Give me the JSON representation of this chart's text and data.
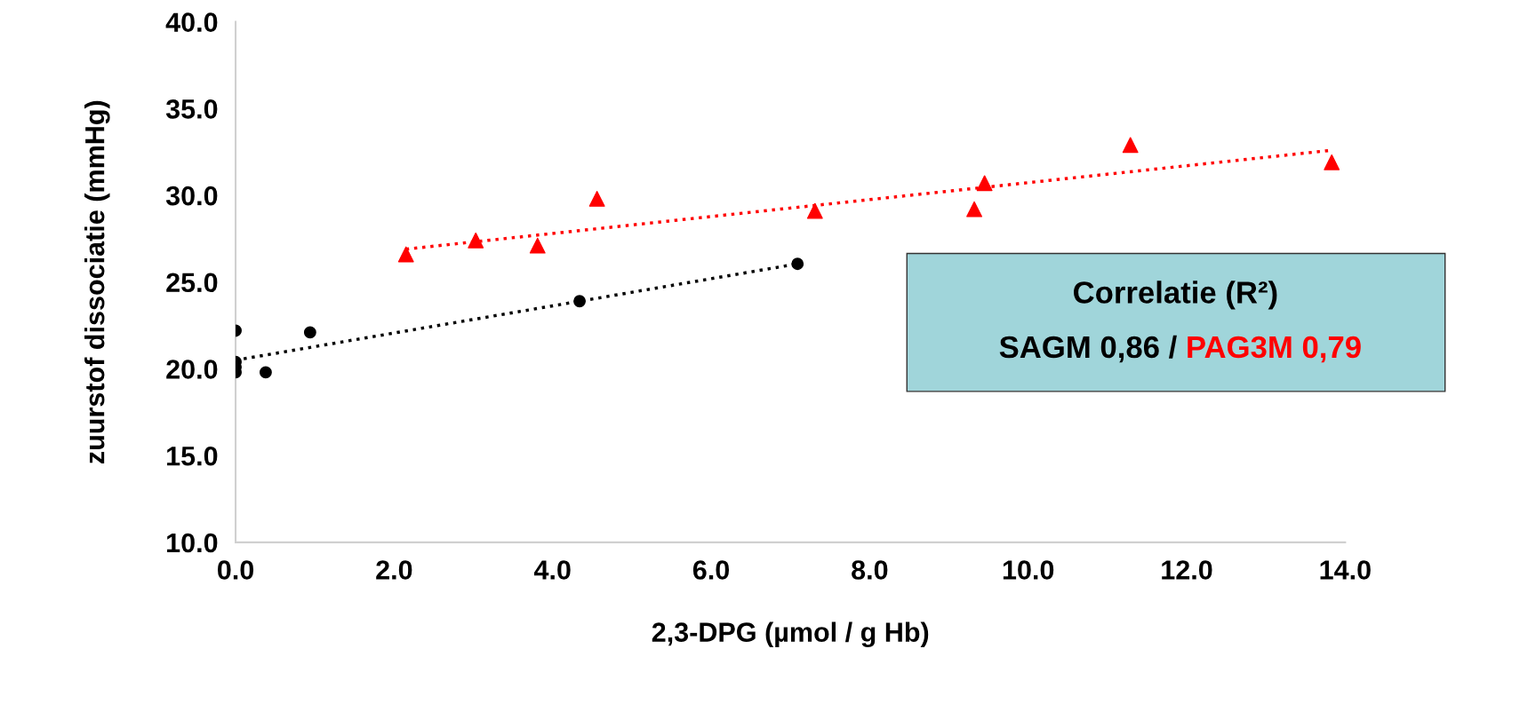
{
  "chart_data": {
    "type": "scatter",
    "xlabel": "2,3-DPG (µmol / g Hb)",
    "ylabel": "zuurstof dissociatie (mmHg)",
    "xlim": [
      0,
      14
    ],
    "ylim": [
      10,
      40
    ],
    "xticks": [
      {
        "value": 0,
        "label": "0.0"
      },
      {
        "value": 2,
        "label": "2.0"
      },
      {
        "value": 4,
        "label": "4.0"
      },
      {
        "value": 6,
        "label": "6.0"
      },
      {
        "value": 8,
        "label": "8.0"
      },
      {
        "value": 10,
        "label": "10.0"
      },
      {
        "value": 12,
        "label": "12.0"
      },
      {
        "value": 14,
        "label": "14.0"
      }
    ],
    "yticks": [
      {
        "value": 10,
        "label": "10.0"
      },
      {
        "value": 15,
        "label": "15.0"
      },
      {
        "value": 20,
        "label": "20.0"
      },
      {
        "value": 25,
        "label": "25.0"
      },
      {
        "value": 30,
        "label": "30.0"
      },
      {
        "value": 35,
        "label": "35.0"
      },
      {
        "value": 40,
        "label": "40.0"
      }
    ],
    "grid": false,
    "series": [
      {
        "color": "#000000",
        "marker": "circle",
        "x": [
          0,
          0,
          0,
          0,
          0.38,
          0.94,
          4.34,
          7.09
        ],
        "values": [
          22.2,
          20.4,
          20.1,
          19.8,
          19.8,
          22.1,
          23.9,
          26.05
        ]
      },
      {
        "color": "#ff0000",
        "marker": "triangle",
        "x": [
          2.15,
          3.03,
          3.81,
          4.56,
          7.31,
          9.32,
          9.45,
          11.29,
          13.83
        ],
        "values": [
          26.6,
          27.4,
          27.1,
          29.8,
          29.1,
          29.2,
          30.7,
          32.9,
          31.9
        ]
      },
      {
        "type": "line",
        "color": "#000000",
        "line_style": "dotted",
        "marker": "none",
        "x": [
          0,
          7.09
        ],
        "values": [
          20.5,
          26.05
        ]
      },
      {
        "type": "line",
        "color": "#ff0000",
        "line_style": "dotted",
        "marker": "none",
        "x": [
          2.15,
          13.83
        ],
        "values": [
          26.9,
          32.6
        ]
      }
    ],
    "annotations": [
      "Correlatie (R²)",
      "SAGM 0,86 / ",
      "PAG3M 0,79"
    ]
  }
}
